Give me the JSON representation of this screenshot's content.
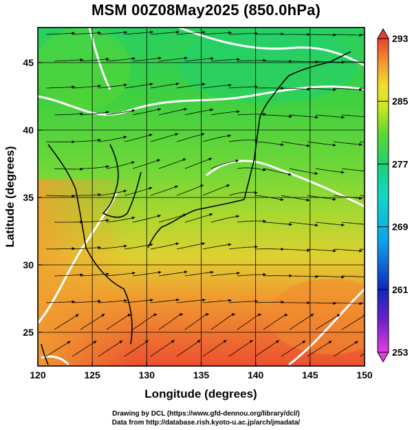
{
  "title": "MSM 00Z08May2025 (850.0hPa)",
  "credits": {
    "line1": "Drawing by DCL (https://www.gfd-dennou.org/library/dcl/)",
    "line2": "Data from http://database.rish.kyoto-u.ac.jp/arch/jmadata/"
  },
  "chart_data": {
    "type": "heatmap",
    "title": "MSM 00Z08May2025 (850.0hPa)",
    "xlabel": "Longitude (degrees)",
    "ylabel": "Latitude  (degrees)",
    "xlim": [
      120,
      150
    ],
    "ylim": [
      22.5,
      47.6
    ],
    "x_ticks": [
      120,
      125,
      130,
      135,
      140,
      145,
      150
    ],
    "y_ticks": [
      25,
      30,
      35,
      40,
      45
    ],
    "x_tick_labels": [
      "120",
      "125",
      "130",
      "135",
      "140",
      "145",
      "150"
    ],
    "y_tick_labels": [
      "25",
      "30",
      "35",
      "40",
      "45"
    ],
    "grid": true,
    "overlay": "wind streamlines",
    "colorbar": {
      "range": [
        253,
        293
      ],
      "tick_values": [
        293,
        285,
        277,
        269,
        261,
        253
      ],
      "tick_labels": [
        "293",
        "285",
        "277",
        "269",
        "261",
        "253"
      ],
      "colors": [
        "#e040e0",
        "#6a2bd0",
        "#1030c0",
        "#10a0e8",
        "#10d8c8",
        "#20d070",
        "#60d830",
        "#c8e820",
        "#f0e030",
        "#f09030",
        "#e84030"
      ]
    },
    "field_summary": [
      {
        "lat": 46,
        "lon_range": [
          120,
          150
        ],
        "value": 280
      },
      {
        "lat": 40,
        "lon_range": [
          120,
          150
        ],
        "value": 279
      },
      {
        "lat": 35,
        "lon_range": [
          120,
          150
        ],
        "value": 281
      },
      {
        "lat": 30,
        "lon_range": [
          120,
          150
        ],
        "value": 284
      },
      {
        "lat": 25,
        "lon_range": [
          120,
          150
        ],
        "value": 289
      },
      {
        "lat": 23,
        "lon_range": [
          120,
          150
        ],
        "value": 291
      }
    ]
  },
  "colors": {
    "coast": "#000000",
    "contour": "#ffffff",
    "streamline": "#000000"
  }
}
